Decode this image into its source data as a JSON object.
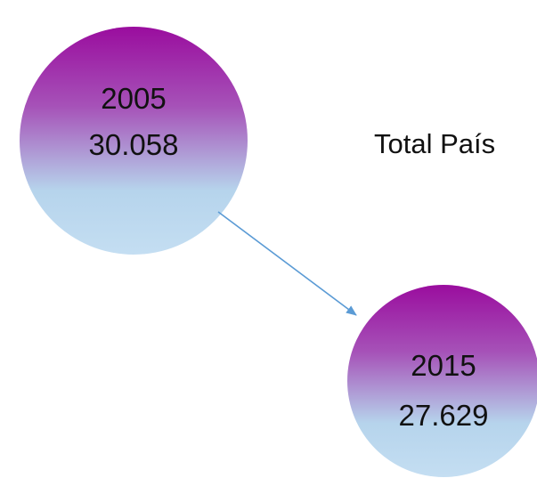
{
  "title": "Total País",
  "nodes": [
    {
      "label": "2005",
      "value": "30.058"
    },
    {
      "label": "2015",
      "value": "27.629"
    }
  ]
}
